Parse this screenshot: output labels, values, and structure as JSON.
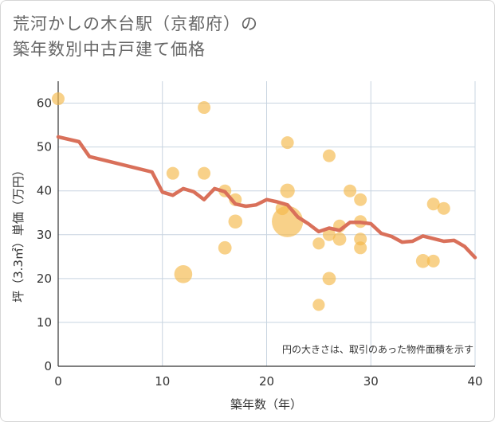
{
  "title_line1": "荒河かしの木台駅（京都府）の",
  "title_line2": "築年数別中古戸建て価格",
  "colors": {
    "bubble": "#f5b94a",
    "line": "#d9705a",
    "grid": "#c8d4e0",
    "plot_bg": "#ffffff"
  },
  "chart_data": {
    "type": "scatter",
    "title": "荒河かしの木台駅（京都府）の築年数別中古戸建て価格",
    "xlabel": "築年数（年）",
    "ylabel": "坪（3.3㎡）単価（万円）",
    "xlim": [
      0,
      40
    ],
    "ylim": [
      0,
      65
    ],
    "xticks": [
      "0",
      "10",
      "20",
      "30",
      "40"
    ],
    "yticks": [
      "0",
      "10",
      "20",
      "30",
      "40",
      "50",
      "60"
    ],
    "note": "円の大きさは、取引のあった物件面積を示す",
    "points": [
      {
        "x": 0,
        "y": 61,
        "s": 1
      },
      {
        "x": 14,
        "y": 59,
        "s": 1
      },
      {
        "x": 11,
        "y": 44,
        "s": 1
      },
      {
        "x": 14,
        "y": 44,
        "s": 1
      },
      {
        "x": 12,
        "y": 21,
        "s": 2
      },
      {
        "x": 16,
        "y": 40,
        "s": 1
      },
      {
        "x": 17,
        "y": 38,
        "s": 1
      },
      {
        "x": 17,
        "y": 33,
        "s": 1.2
      },
      {
        "x": 16,
        "y": 27,
        "s": 1.1
      },
      {
        "x": 21.5,
        "y": 36,
        "s": 1.1
      },
      {
        "x": 22,
        "y": 51,
        "s": 1
      },
      {
        "x": 22,
        "y": 40,
        "s": 1.3
      },
      {
        "x": 22,
        "y": 33,
        "s": 6
      },
      {
        "x": 25,
        "y": 28,
        "s": 0.9
      },
      {
        "x": 25,
        "y": 14,
        "s": 0.9
      },
      {
        "x": 26,
        "y": 48,
        "s": 1
      },
      {
        "x": 26,
        "y": 30,
        "s": 1
      },
      {
        "x": 26,
        "y": 20,
        "s": 1.1
      },
      {
        "x": 27,
        "y": 32,
        "s": 1
      },
      {
        "x": 27,
        "y": 29,
        "s": 1.1
      },
      {
        "x": 28,
        "y": 40,
        "s": 1
      },
      {
        "x": 29,
        "y": 38,
        "s": 1
      },
      {
        "x": 29,
        "y": 33,
        "s": 1
      },
      {
        "x": 29,
        "y": 29,
        "s": 1
      },
      {
        "x": 29,
        "y": 27,
        "s": 1
      },
      {
        "x": 35,
        "y": 24,
        "s": 1.2
      },
      {
        "x": 36,
        "y": 24,
        "s": 1
      },
      {
        "x": 36,
        "y": 37,
        "s": 1
      },
      {
        "x": 37,
        "y": 36,
        "s": 1
      }
    ],
    "trend": {
      "x": [
        0,
        2,
        3,
        9,
        10,
        11,
        12,
        13,
        14,
        15,
        16,
        17,
        18,
        19,
        20,
        21,
        22,
        23,
        24,
        25,
        26,
        27,
        28,
        29,
        30,
        31,
        32,
        33,
        34,
        35,
        36,
        37,
        38,
        39,
        40
      ],
      "y": [
        52.3,
        51.2,
        47.8,
        44.3,
        39.7,
        39.0,
        40.5,
        39.8,
        38.0,
        40.5,
        39.8,
        37.0,
        36.5,
        36.8,
        38.0,
        37.5,
        36.8,
        34.0,
        32.5,
        30.7,
        31.5,
        31.0,
        32.8,
        32.8,
        32.5,
        30.3,
        29.6,
        28.3,
        28.5,
        29.7,
        29.1,
        28.5,
        28.7,
        27.3,
        24.8
      ]
    }
  }
}
